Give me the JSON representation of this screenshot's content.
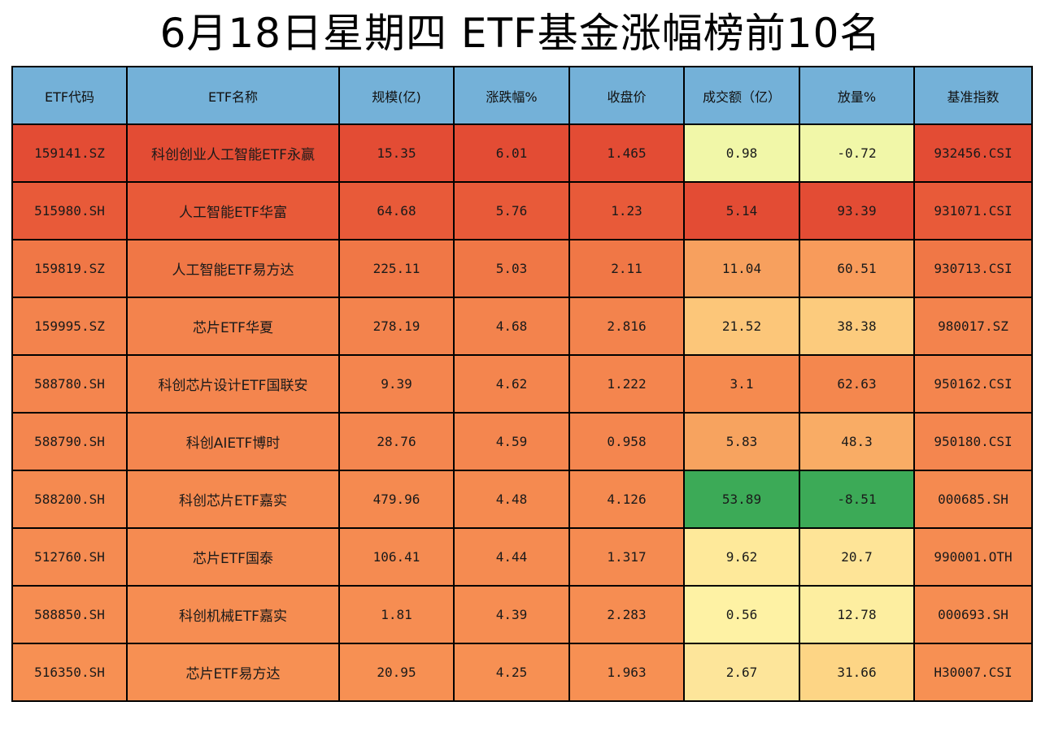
{
  "title": "6月18日星期四 ETF基金涨幅榜前10名",
  "headers": [
    "ETF代码",
    "ETF名称",
    "规模(亿)",
    "涨跌幅%",
    "收盘价",
    "成交额（亿）",
    "放量%",
    "基准指数"
  ],
  "rows": [
    {
      "code": "159141.SZ",
      "name": "科创创业人工智能ETF永赢",
      "scale": "15.35",
      "change": "6.01",
      "close": "1.465",
      "amount": "0.98",
      "volume": "-0.72",
      "index": "932456.CSI",
      "colors": [
        "#e34c34",
        "#e34c34",
        "#e34c34",
        "#e34c34",
        "#e34c34",
        "#f1f7a8",
        "#f1f7a8",
        "#e34c34"
      ]
    },
    {
      "code": "515980.SH",
      "name": "人工智能ETF华富",
      "scale": "64.68",
      "change": "5.76",
      "close": "1.23",
      "amount": "5.14",
      "volume": "93.39",
      "index": "931071.CSI",
      "colors": [
        "#e85a39",
        "#e85a39",
        "#e85a39",
        "#e85a39",
        "#e85a39",
        "#e34c34",
        "#e34c34",
        "#e85a39"
      ]
    },
    {
      "code": "159819.SZ",
      "name": "人工智能ETF易方达",
      "scale": "225.11",
      "change": "5.03",
      "close": "2.11",
      "amount": "11.04",
      "volume": "60.51",
      "index": "930713.CSI",
      "colors": [
        "#f07746",
        "#f07746",
        "#f07746",
        "#f07746",
        "#f07746",
        "#f7a05e",
        "#f89b5b",
        "#f07746"
      ]
    },
    {
      "code": "159995.SZ",
      "name": "芯片ETF华夏",
      "scale": "278.19",
      "change": "4.68",
      "close": "2.816",
      "amount": "21.52",
      "volume": "38.38",
      "index": "980017.SZ",
      "colors": [
        "#f3834d",
        "#f3834d",
        "#f3834d",
        "#f3834d",
        "#f3834d",
        "#fcc679",
        "#fccb7d",
        "#f3834d"
      ]
    },
    {
      "code": "588780.SH",
      "name": "科创芯片设计ETF国联安",
      "scale": "9.39",
      "change": "4.62",
      "close": "1.222",
      "amount": "3.1",
      "volume": "62.63",
      "index": "950162.CSI",
      "colors": [
        "#f4854e",
        "#f4854e",
        "#f4854e",
        "#f4854e",
        "#f4854e",
        "#f58a4f",
        "#f4874e",
        "#f4854e"
      ]
    },
    {
      "code": "588790.SH",
      "name": "科创AIETF博时",
      "scale": "28.76",
      "change": "4.59",
      "close": "0.958",
      "amount": "5.83",
      "volume": "48.3",
      "index": "950180.CSI",
      "colors": [
        "#f4864f",
        "#f4864f",
        "#f4864f",
        "#f4864f",
        "#f4864f",
        "#f7a35f",
        "#f9ac65",
        "#f4864f"
      ]
    },
    {
      "code": "588200.SH",
      "name": "科创芯片ETF嘉实",
      "scale": "479.96",
      "change": "4.48",
      "close": "4.126",
      "amount": "53.89",
      "volume": "-8.51",
      "index": "000685.SH",
      "colors": [
        "#f58a50",
        "#f58a50",
        "#f58a50",
        "#f58a50",
        "#f58a50",
        "#3caa57",
        "#3caa57",
        "#f58a50"
      ]
    },
    {
      "code": "512760.SH",
      "name": "芯片ETF国泰",
      "scale": "106.41",
      "change": "4.44",
      "close": "1.317",
      "amount": "9.62",
      "volume": "20.7",
      "index": "990001.OTH",
      "colors": [
        "#f58b51",
        "#f58b51",
        "#f58b51",
        "#f58b51",
        "#f58b51",
        "#fee99a",
        "#fee497",
        "#f58b51"
      ]
    },
    {
      "code": "588850.SH",
      "name": "科创机械ETF嘉实",
      "scale": "1.81",
      "change": "4.39",
      "close": "2.283",
      "amount": "0.56",
      "volume": "12.78",
      "index": "000693.SH",
      "colors": [
        "#f68d52",
        "#f68d52",
        "#f68d52",
        "#f68d52",
        "#f68d52",
        "#fef2a4",
        "#fdeea0",
        "#f68d52"
      ]
    },
    {
      "code": "516350.SH",
      "name": "芯片ETF易方达",
      "scale": "20.95",
      "change": "4.25",
      "close": "1.963",
      "amount": "2.67",
      "volume": "31.66",
      "index": "H30007.CSI",
      "colors": [
        "#f79053",
        "#f79053",
        "#f79053",
        "#f79053",
        "#f79053",
        "#fde59a",
        "#fdd585",
        "#f79053"
      ]
    }
  ]
}
